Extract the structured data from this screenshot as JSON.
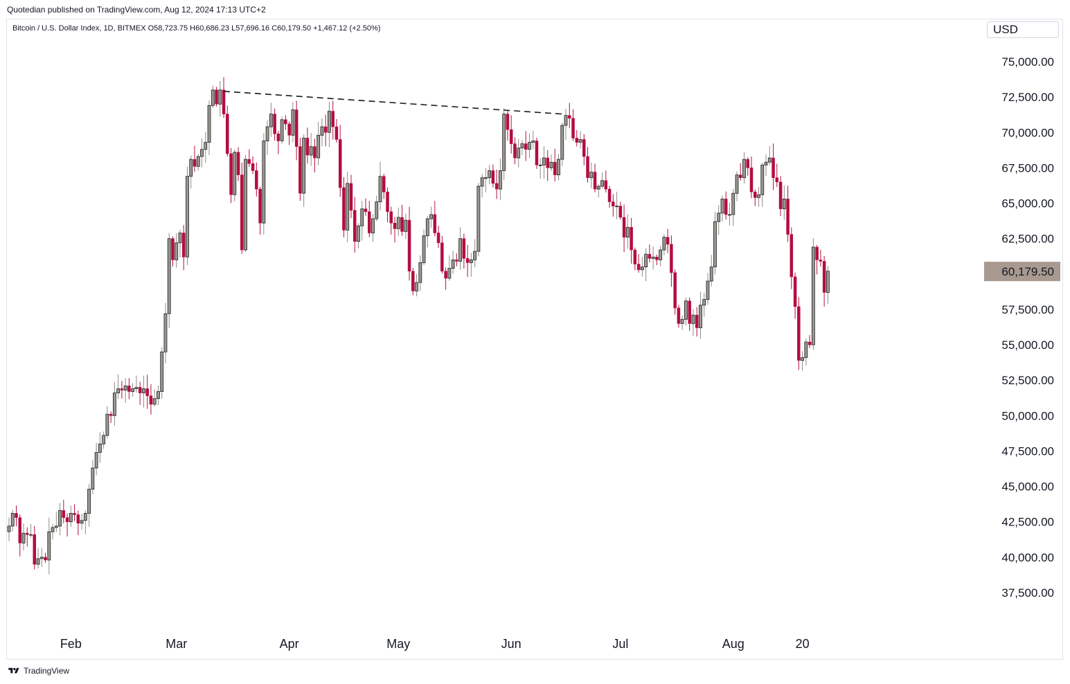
{
  "header": {
    "published": "Quotedian published on TradingView.com, Aug 12, 2024 17:13 UTC+2"
  },
  "legend": {
    "text": "Bitcoin / U.S. Dollar Index, 1D, BITMEX  O58,723.75  H60,686.23  L57,696.16  C60,179.50  +1,467.12 (+2.50%)"
  },
  "currency": "USD",
  "footer": {
    "brand": "TradingView"
  },
  "colors": {
    "up": "#9b9891",
    "down": "#b30d3f",
    "wick_up": "#8c8a86",
    "wick_down": "#b30d3f",
    "last_price_bg": "#a89a90",
    "trendline": "#131722"
  },
  "chart_data": {
    "type": "candlestick",
    "symbol": "Bitcoin / U.S. Dollar Index",
    "interval": "1D",
    "exchange": "BITMEX",
    "y_ticks": [
      37500,
      40000,
      42500,
      45000,
      47500,
      50000,
      52500,
      55000,
      57500,
      60000,
      62500,
      65000,
      67500,
      70000,
      72500,
      75000
    ],
    "y_tick_labels": [
      "37,500.00",
      "40,000.00",
      "42,500.00",
      "45,000.00",
      "47,500.00",
      "50,000.00",
      "52,500.00",
      "55,000.00",
      "57,500.00",
      "60,000.00",
      "62,500.00",
      "65,000.00",
      "67,500.00",
      "70,000.00",
      "72,500.00",
      "75,000.00"
    ],
    "x_ticks": [
      {
        "label": "Feb",
        "day": 17
      },
      {
        "label": "Mar",
        "day": 46
      },
      {
        "label": "Apr",
        "day": 77
      },
      {
        "label": "May",
        "day": 107
      },
      {
        "label": "Jun",
        "day": 138
      },
      {
        "label": "Jul",
        "day": 168
      },
      {
        "label": "Aug",
        "day": 199
      },
      {
        "label": "20",
        "day": 218
      }
    ],
    "ylim": [
      35000,
      77000
    ],
    "last_price": 60179.5,
    "last_price_label": "60,179.50",
    "trendline": [
      {
        "day": 59,
        "value": 72900
      },
      {
        "day": 152,
        "value": 71300
      }
    ],
    "closes": [
      42200,
      43100,
      42800,
      41000,
      41700,
      41600,
      41600,
      39500,
      39900,
      40000,
      39800,
      41800,
      42100,
      42200,
      43300,
      42800,
      42500,
      43100,
      43000,
      42400,
      42600,
      43100,
      44800,
      46300,
      47400,
      48000,
      48600,
      50100,
      50000,
      51600,
      51900,
      51800,
      52100,
      51700,
      51900,
      52000,
      51600,
      51900,
      51400,
      50800,
      51200,
      51700,
      54500,
      57200,
      62500,
      61000,
      62200,
      62900,
      61200,
      66900,
      68100,
      67600,
      68300,
      68800,
      69300,
      71900,
      73000,
      72000,
      73000,
      71300,
      68500,
      65600,
      68600,
      67000,
      61700,
      68100,
      67800,
      67300,
      66000,
      63600,
      69400,
      70400,
      71300,
      69900,
      69400,
      70900,
      70600,
      69800,
      71600,
      69000,
      65700,
      69600,
      68400,
      69000,
      68200,
      69800,
      70400,
      70000,
      71500,
      70400,
      69500,
      66100,
      63100,
      66400,
      64500,
      62300,
      63400,
      64600,
      64400,
      62900,
      63900,
      65100,
      66900,
      65800,
      64400,
      63600,
      63200,
      64000,
      63000,
      63800,
      60200,
      58800,
      59400,
      60800,
      62700,
      63900,
      64200,
      62900,
      62200,
      60200,
      59700,
      60400,
      61000,
      60900,
      62500,
      61100,
      60800,
      61000,
      61600,
      66200,
      66800,
      66800,
      67300,
      66400,
      66000,
      67300,
      71300,
      70200,
      69200,
      68200,
      68900,
      69200,
      68800,
      69300,
      69400,
      67700,
      67700,
      68200,
      67500,
      67900,
      67000,
      68100,
      70500,
      71200,
      71000,
      69600,
      69300,
      69500,
      68300,
      66800,
      67200,
      66000,
      66200,
      66600,
      66000,
      65100,
      64800,
      64800,
      64000,
      62600,
      63300,
      61700,
      60700,
      60300,
      60500,
      61400,
      61100,
      61200,
      61000,
      61700,
      62600,
      62100,
      60100,
      57600,
      56500,
      56800,
      58100,
      56500,
      57100,
      56200,
      57800,
      58200,
      59500,
      60500,
      63700,
      64300,
      65300,
      64200,
      64200,
      65700,
      67000,
      66800,
      68100,
      67500,
      65800,
      65400,
      65600,
      67700,
      67900,
      68200,
      66800,
      66500,
      64600,
      65300,
      62800,
      59800,
      57700,
      53900,
      54100,
      55200,
      55000,
      61900,
      61000,
      60900,
      58700,
      60200
    ]
  }
}
